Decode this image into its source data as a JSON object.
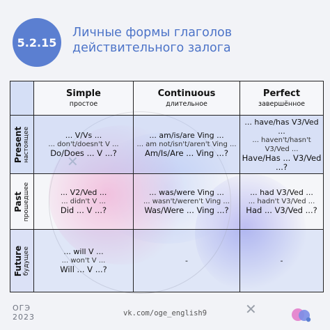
{
  "colors": {
    "accent": "#5b7fd1",
    "title": "#4d74c8",
    "background": "#f2f3f7"
  },
  "badge": "5.2.15",
  "title": [
    "Личные формы глаголов",
    "действительного залога"
  ],
  "columns": [
    {
      "en": "Simple",
      "ru": "простое"
    },
    {
      "en": "Continuous",
      "ru": "длительное"
    },
    {
      "en": "Perfect",
      "ru": "завершённое"
    }
  ],
  "rows": [
    {
      "en": "Present",
      "ru": "настоящее",
      "cells": [
        [
          "... V/Vs ...",
          "... don't/doesn't V ...",
          "Do/Does ... V ...?"
        ],
        [
          "... am/is/are Ving ...",
          "... am not/isn't/aren't Ving ...",
          "Am/Is/Are ... Ving ...?"
        ],
        [
          "... have/has V3/Ved ...",
          "... haven't/hasn't V3/Ved ...",
          "Have/Has ... V3/Ved ...?"
        ]
      ]
    },
    {
      "en": "Past",
      "ru": "прошедшее",
      "cells": [
        [
          "... V2/Ved ...",
          "... didn't V ...",
          "Did ... V ...?"
        ],
        [
          "... was/were Ving ...",
          "... wasn't/weren't Ving ...",
          "Was/Were ... Ving ...?"
        ],
        [
          "... had V3/Ved ...",
          "... hadn't V3/Ved ...",
          "Had ... V3/Ved ...?"
        ]
      ]
    },
    {
      "en": "Future",
      "ru": "будущее",
      "cells": [
        [
          "... will V ...",
          "... won't V ...",
          "Will ... V ...?"
        ],
        [
          "-"
        ],
        [
          "-"
        ]
      ]
    }
  ],
  "footer": {
    "exam": "ОГЭ",
    "year": "2023",
    "link": "vk.com/oge_english9"
  },
  "icons": {
    "decor": "cross-icon",
    "logo": "vk-blob-logo"
  }
}
